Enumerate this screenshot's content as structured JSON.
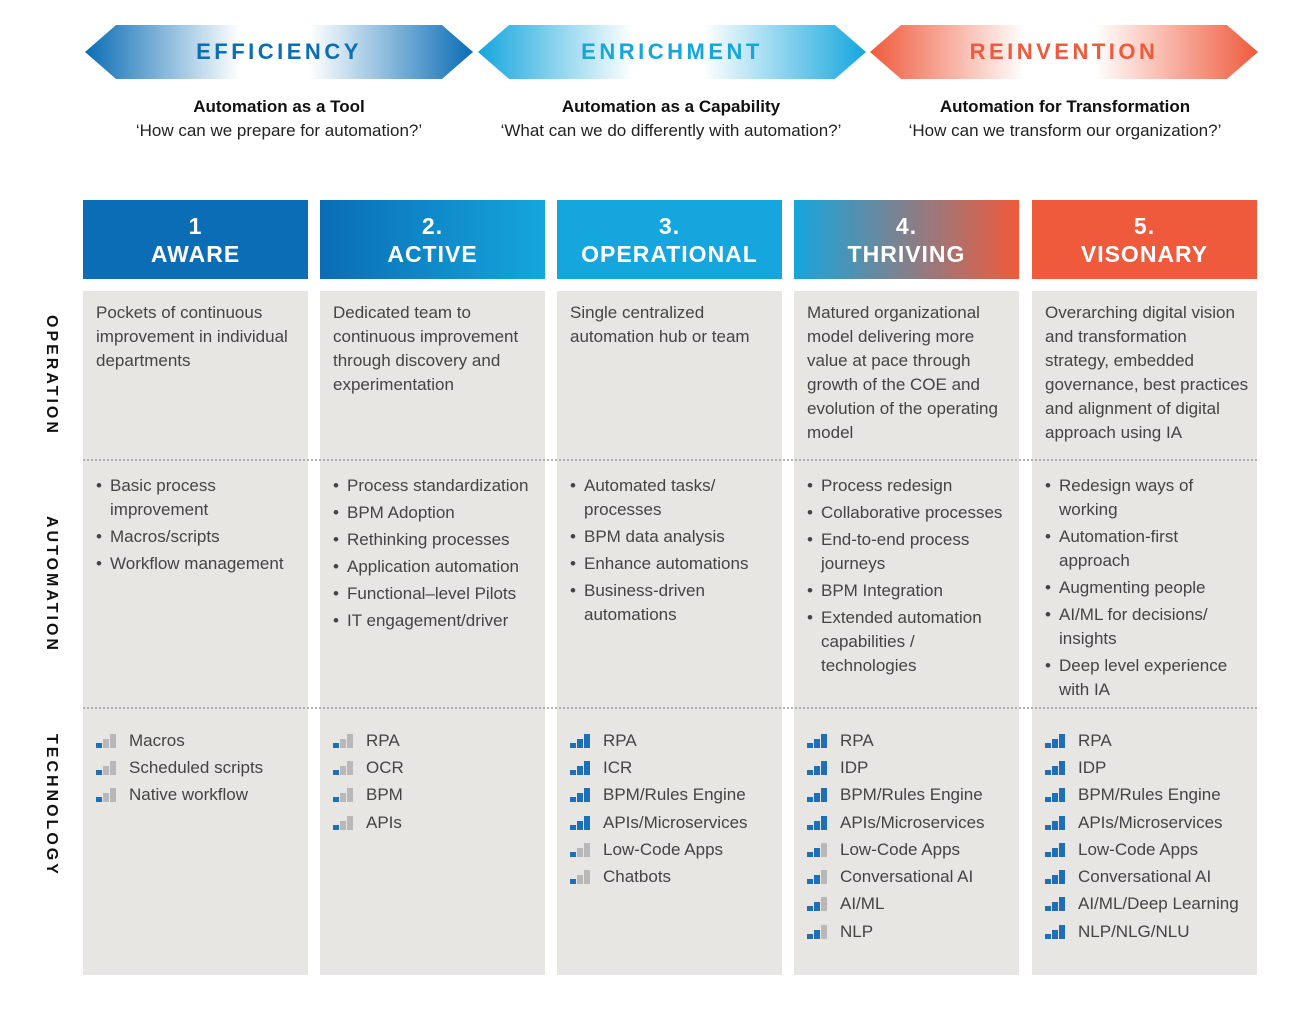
{
  "colors": {
    "blue_dark": "#0a6db5",
    "blue_light": "#15a6dd",
    "orange": "#f05a3c",
    "bar_on": "#1f6fb8",
    "bar_off": "#b8b8b8"
  },
  "phases": [
    {
      "banner": "EFFICIENCY",
      "title": "Automation as a Tool",
      "question": "‘How can we prepare for automation?’"
    },
    {
      "banner": "ENRICHMENT",
      "title": "Automation as a Capability",
      "question": "‘What can we do differently with automation?’"
    },
    {
      "banner": "REINVENTION",
      "title": "Automation for Transformation",
      "question": "‘How can we transform our organization?’"
    }
  ],
  "row_labels": {
    "operation": "OPERATION",
    "automation": "AUTOMATION",
    "technology": "TECHNOLOGY"
  },
  "levels": [
    {
      "number": "1",
      "name": "AWARE",
      "operation": "Pockets of continuous improvement in individual departments",
      "automation": [
        "Basic process improvement",
        "Macros/scripts",
        "Workflow management"
      ],
      "technology": [
        {
          "label": "Macros",
          "level": 1
        },
        {
          "label": "Scheduled scripts",
          "level": 1
        },
        {
          "label": "Native workflow",
          "level": 1
        }
      ]
    },
    {
      "number": "2.",
      "name": "ACTIVE",
      "operation": "Dedicated team to continuous improvement through discovery and experimentation",
      "automation": [
        "Process standardization",
        "BPM Adoption",
        "Rethinking processes",
        "Application automation",
        "Functional–level Pilots",
        "IT engagement/driver"
      ],
      "technology": [
        {
          "label": "RPA",
          "level": 1
        },
        {
          "label": "OCR",
          "level": 1
        },
        {
          "label": "BPM",
          "level": 1
        },
        {
          "label": "APIs",
          "level": 1
        }
      ]
    },
    {
      "number": "3.",
      "name": "OPERATIONAL",
      "operation": "Single centralized automation hub or team",
      "automation": [
        "Automated tasks/ processes",
        "BPM data analysis",
        "Enhance automations",
        "Business-driven automations"
      ],
      "technology": [
        {
          "label": "RPA",
          "level": 3
        },
        {
          "label": "ICR",
          "level": 3
        },
        {
          "label": "BPM/Rules Engine",
          "level": 3
        },
        {
          "label": "APIs/Microservices",
          "level": 3
        },
        {
          "label": "Low-Code Apps",
          "level": 1
        },
        {
          "label": "Chatbots",
          "level": 1
        }
      ]
    },
    {
      "number": "4.",
      "name": "THRIVING",
      "operation": "Matured organizational model delivering more value at pace through growth of the COE and evolution of the operating model",
      "automation": [
        "Process redesign",
        "Collaborative processes",
        "End-to-end process journeys",
        "BPM Integration",
        "Extended automation capabilities / technologies"
      ],
      "technology": [
        {
          "label": "RPA",
          "level": 3
        },
        {
          "label": "IDP",
          "level": 3
        },
        {
          "label": "BPM/Rules Engine",
          "level": 3
        },
        {
          "label": "APIs/Microservices",
          "level": 3
        },
        {
          "label": "Low-Code Apps",
          "level": 2
        },
        {
          "label": "Conversational AI",
          "level": 2
        },
        {
          "label": "AI/ML",
          "level": 2
        },
        {
          "label": "NLP",
          "level": 2
        }
      ]
    },
    {
      "number": "5.",
      "name": "VISONARY",
      "operation": "Overarching digital vision and transformation strategy, embedded governance, best practices and alignment of digital approach using IA",
      "automation": [
        "Redesign ways of working",
        "Automation-first approach",
        "Augmenting people",
        "AI/ML for decisions/ insights",
        "Deep level experience with IA"
      ],
      "technology": [
        {
          "label": "RPA",
          "level": 3
        },
        {
          "label": "IDP",
          "level": 3
        },
        {
          "label": "BPM/Rules Engine",
          "level": 3
        },
        {
          "label": "APIs/Microservices",
          "level": 3
        },
        {
          "label": "Low-Code Apps",
          "level": 3
        },
        {
          "label": "Conversational AI",
          "level": 3
        },
        {
          "label": "AI/ML/Deep Learning",
          "level": 3
        },
        {
          "label": "NLP/NLG/NLU",
          "level": 3
        }
      ]
    }
  ]
}
